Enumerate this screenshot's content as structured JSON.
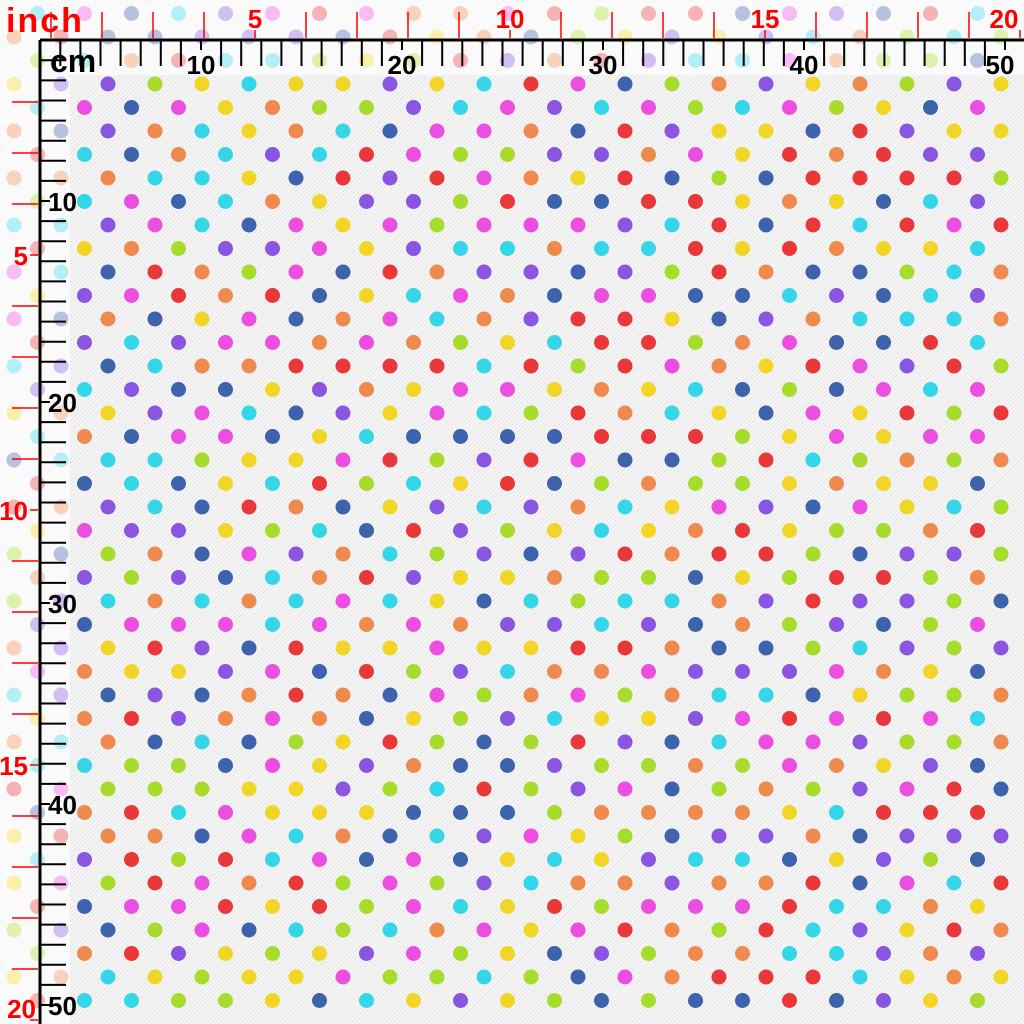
{
  "ruler": {
    "inch_unit_label": "inch",
    "cm_unit_label": "cm",
    "inch_labels_top": [
      "5",
      "10",
      "15",
      "20"
    ],
    "cm_labels_top": [
      "10",
      "20",
      "30",
      "40",
      "50"
    ],
    "inch_labels_left": [
      "5",
      "10",
      "15",
      "20"
    ],
    "cm_labels_left": [
      "10",
      "20",
      "30",
      "40",
      "50"
    ],
    "inch_color": "#ff0000",
    "cm_color": "#000000"
  },
  "fabric": {
    "pattern": "polka-dot",
    "background": "#f1f1f1",
    "dot_colors": [
      "#e8383a",
      "#ef8a4f",
      "#f2d627",
      "#a6dc2c",
      "#35d6e8",
      "#3d63ad",
      "#8a55e0",
      "#ec4fe0"
    ]
  }
}
